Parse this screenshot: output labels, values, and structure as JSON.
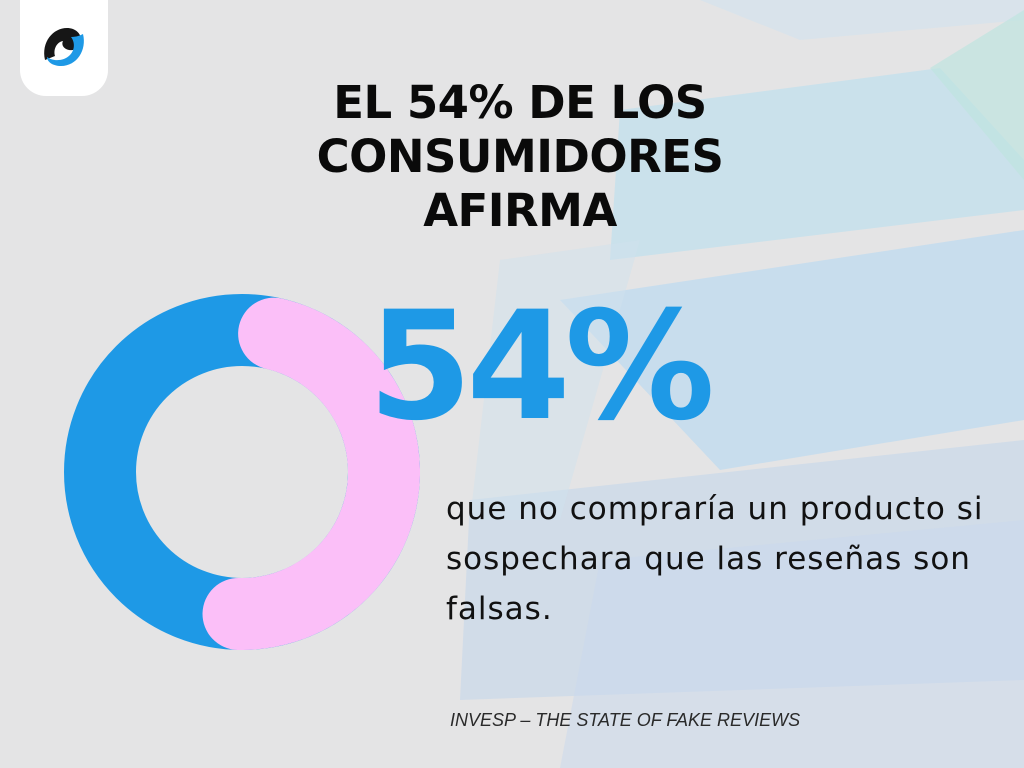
{
  "brand": {
    "logo": "brand-logo-icon"
  },
  "title": "EL 54% DE LOS CONSUMIDORES AFIRMA",
  "stat": {
    "percent_text": "54%",
    "description": "que no compraría un producto si sospechara que las reseñas son falsas."
  },
  "source": "INVESP – THE STATE OF FAKE REVIEWS",
  "colors": {
    "accent": "#1e99e6",
    "highlight": "#fbbff8",
    "background": "#e4e4e5"
  },
  "chart_data": {
    "type": "pie",
    "variant": "donut",
    "slices": [
      {
        "value": 54,
        "color": "#fbbff8"
      },
      {
        "value": 46,
        "color": "#1e99e6"
      }
    ]
  }
}
